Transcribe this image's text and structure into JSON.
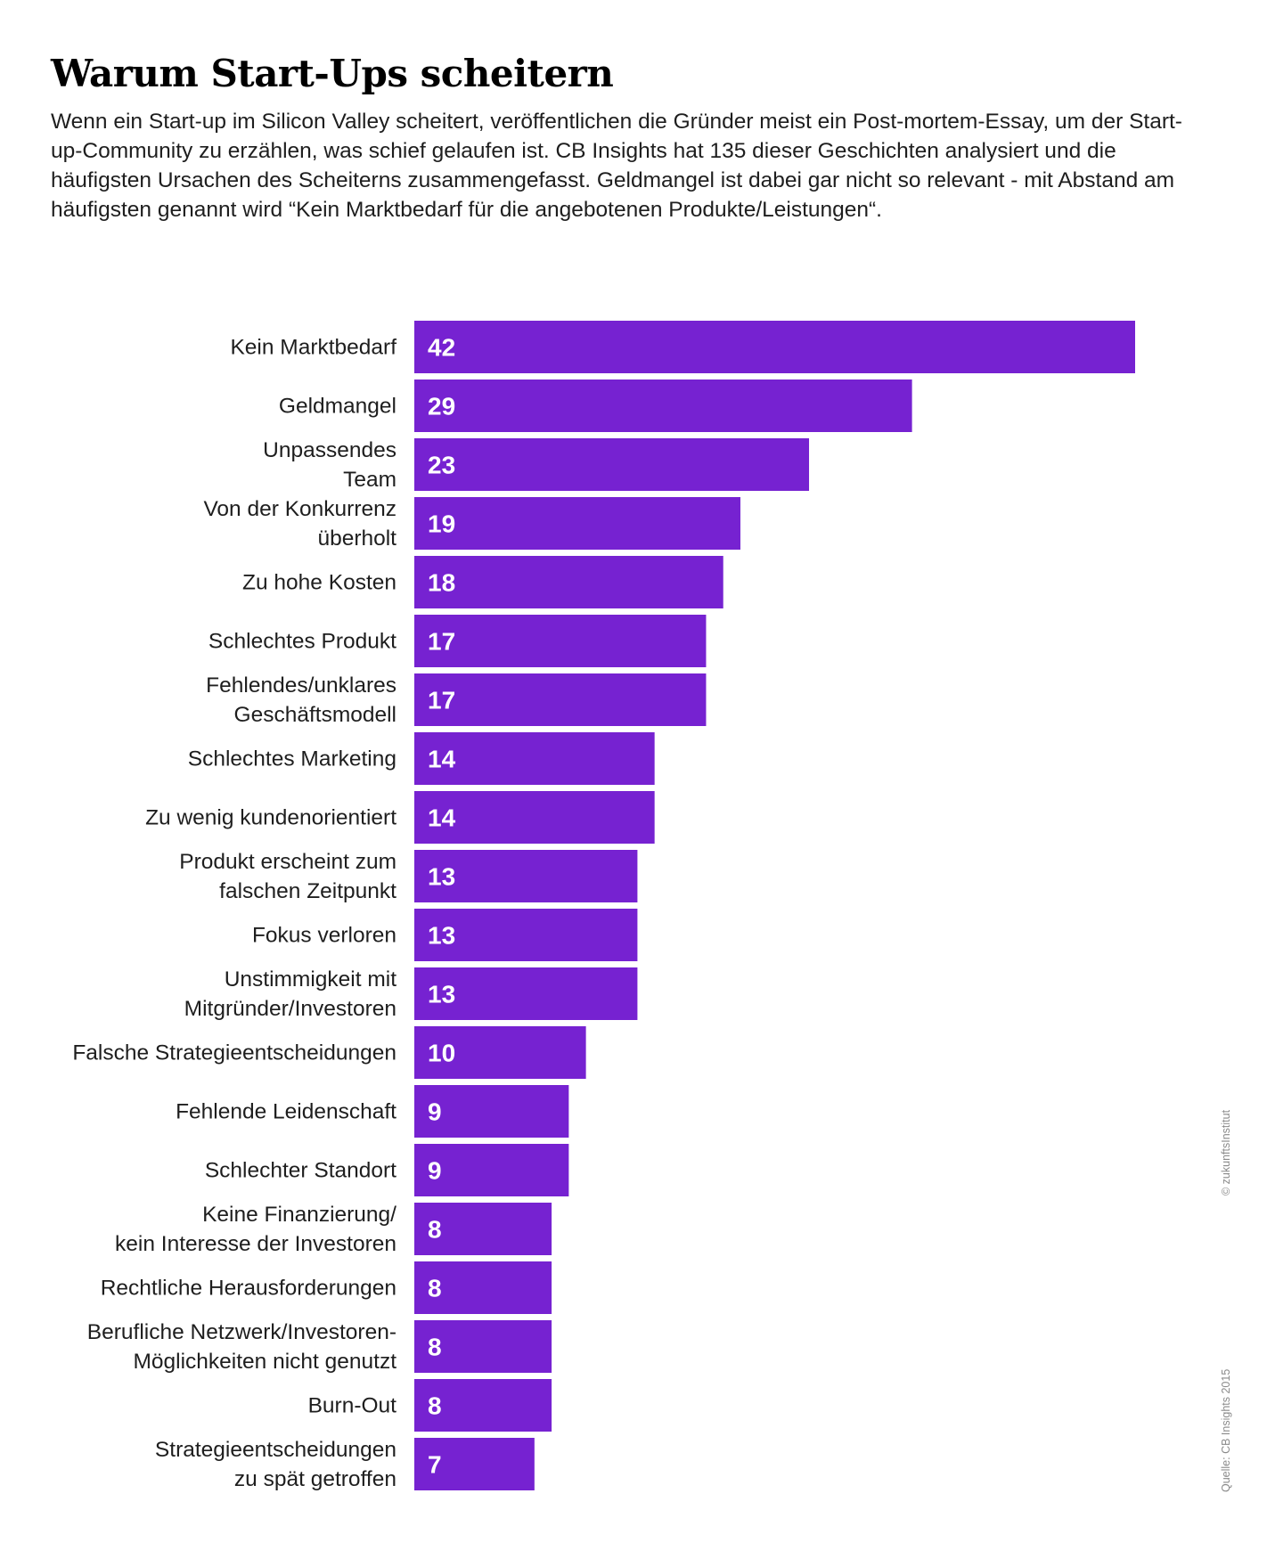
{
  "header": {
    "title": "Warum Start-Ups scheitern",
    "subtitle": "Wenn ein Start-up im Silicon Valley scheitert, veröffentlichen die Gründer meist ein Post-mortem-Essay, um der Start-up-Community zu erzählen, was schief gelaufen ist. CB Insights hat 135 dieser Geschichten analysiert und die häufigsten Ursachen des Scheiterns zusammengefasst. Geldmangel ist dabei gar nicht so relevant - mit Abstand am häufigsten genannt wird “Kein Marktbedarf für die angebotenen Produkte/Leistungen“."
  },
  "credits": {
    "copyright": "© zukunftsInstitut",
    "source": "Quelle: CB Insights 2015"
  },
  "chart_data": {
    "type": "bar",
    "orientation": "horizontal",
    "bar_color": "#7622d1",
    "value_label_color": "#ffffff",
    "categories": [
      [
        "Kein Marktbedarf"
      ],
      [
        "Geldmangel"
      ],
      [
        "Unpassendes",
        "Team"
      ],
      [
        "Von der Konkurrenz",
        "überholt"
      ],
      [
        "Zu hohe Kosten"
      ],
      [
        "Schlechtes Produkt"
      ],
      [
        "Fehlendes/unklares",
        "Geschäftsmodell"
      ],
      [
        "Schlechtes Marketing"
      ],
      [
        "Zu wenig kundenorientiert"
      ],
      [
        "Produkt erscheint zum",
        "falschen Zeitpunkt"
      ],
      [
        "Fokus verloren"
      ],
      [
        "Unstimmigkeit mit",
        "Mitgründer/Investoren"
      ],
      [
        "Falsche Strategieentscheidungen"
      ],
      [
        "Fehlende Leidenschaft"
      ],
      [
        "Schlechter Standort"
      ],
      [
        "Keine Finanzierung/",
        "kein Interesse der Investoren"
      ],
      [
        "Rechtliche Herausforderungen"
      ],
      [
        "Berufliche Netzwerk/Investoren-",
        "Möglichkeiten nicht genutzt"
      ],
      [
        "Burn-Out"
      ],
      [
        "Strategieentscheidungen",
        "zu spät getroffen"
      ]
    ],
    "values": [
      42,
      29,
      23,
      19,
      18,
      17,
      17,
      14,
      14,
      13,
      13,
      13,
      10,
      9,
      9,
      8,
      8,
      8,
      8,
      7
    ],
    "xlim": [
      0,
      42
    ],
    "grid": false,
    "legend": "none"
  }
}
